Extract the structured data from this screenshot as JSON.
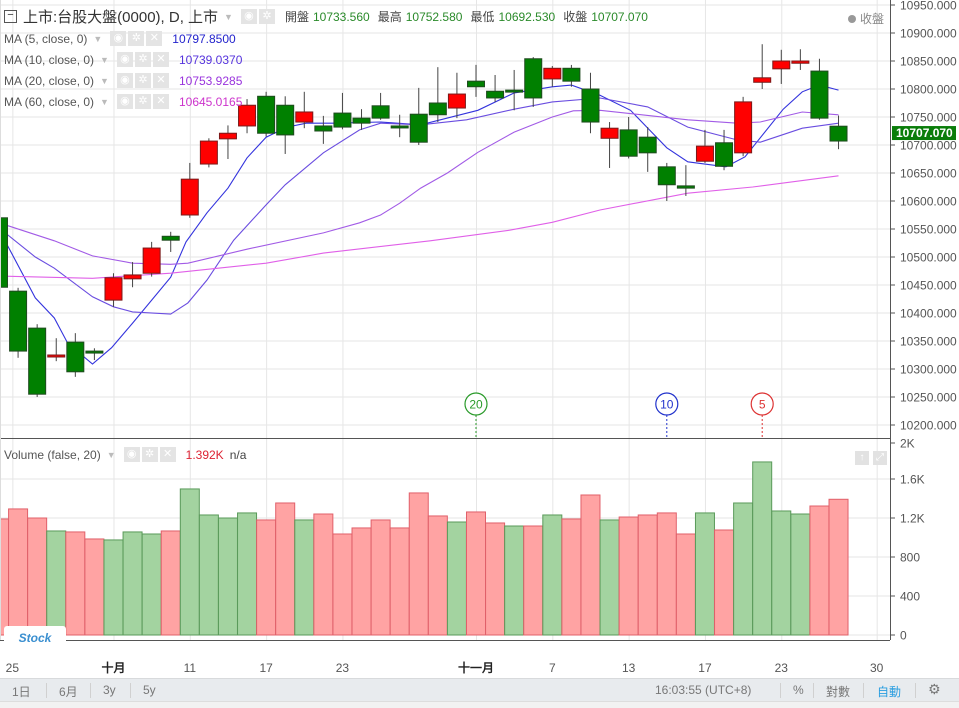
{
  "header": {
    "title": "上市:台股大盤(0000), D, 上市",
    "open_label": "開盤",
    "open": "10733.560",
    "high_label": "最高",
    "high": "10752.580",
    "low_label": "最低",
    "low": "10692.530",
    "close_label": "收盤",
    "close": "10707.070",
    "closing_indicator": "收盤"
  },
  "indicators": [
    {
      "label": "MA (5, close, 0)",
      "value": "10797.8500",
      "color": "#2222cc"
    },
    {
      "label": "MA (10, close, 0)",
      "value": "10739.0370",
      "color": "#5533dd"
    },
    {
      "label": "MA (20, close, 0)",
      "value": "10753.9285",
      "color": "#9933dd"
    },
    {
      "label": "MA (60, close, 0)",
      "value": "10645.0165",
      "color": "#cc33cc"
    }
  ],
  "volume_legend": {
    "label": "Volume (false, 20)",
    "value": "1.392K",
    "extra": "n/a"
  },
  "current_price_label": "10707.070",
  "colors": {
    "up": "#ff0000",
    "down": "#008000",
    "vol_up": "#ffa3a3",
    "vol_down": "#a3d3a0"
  },
  "chart_data": {
    "type": "candlestick",
    "price_axis": {
      "range": [
        10200,
        10950
      ],
      "step": 50,
      "labels": [
        "10950.000",
        "10900.000",
        "10850.000",
        "10800.000",
        "10750.000",
        "10700.000",
        "10650.000",
        "10600.000",
        "10550.000",
        "10500.000",
        "10450.000",
        "10400.000",
        "10350.000",
        "10300.000",
        "10250.000",
        "10200.000"
      ]
    },
    "volume_axis": {
      "range": [
        0,
        2000
      ],
      "ticks": [
        {
          "v": 0,
          "label": "0"
        },
        {
          "v": 400,
          "label": "400"
        },
        {
          "v": 800,
          "label": "800"
        },
        {
          "v": 1200,
          "label": "1.2K"
        },
        {
          "v": 1600,
          "label": "1.6K"
        },
        {
          "v": 2000,
          "label": "2K"
        }
      ]
    },
    "x_ticks": [
      {
        "i": 0.7,
        "label": "25"
      },
      {
        "i": 6,
        "label": "十月",
        "bold": true
      },
      {
        "i": 10,
        "label": "11"
      },
      {
        "i": 14,
        "label": "17"
      },
      {
        "i": 18,
        "label": "23"
      },
      {
        "i": 25,
        "label": "十一月",
        "bold": true
      },
      {
        "i": 29,
        "label": "7"
      },
      {
        "i": 33,
        "label": "13"
      },
      {
        "i": 37,
        "label": "17"
      },
      {
        "i": 41,
        "label": "23"
      },
      {
        "i": 46,
        "label": "30"
      }
    ],
    "candles": [
      [
        10570,
        10575,
        10440,
        10446
      ],
      [
        10439,
        10445,
        10320,
        10332
      ],
      [
        10373,
        10380,
        10250,
        10255
      ],
      [
        10322,
        10355,
        10314,
        10325
      ],
      [
        10348,
        10364,
        10286,
        10295
      ],
      [
        10332,
        10337,
        10316,
        10329
      ],
      [
        10423,
        10471,
        10411,
        10463
      ],
      [
        10461,
        10491,
        10446,
        10468
      ],
      [
        10471,
        10527,
        10465,
        10516
      ],
      [
        10537,
        10545,
        10509,
        10530
      ],
      [
        10575,
        10668,
        10570,
        10639
      ],
      [
        10666,
        10712,
        10660,
        10707
      ],
      [
        10711,
        10735,
        10675,
        10721
      ],
      [
        10734,
        10782,
        10721,
        10771
      ],
      [
        10787,
        10795,
        10715,
        10721
      ],
      [
        10771,
        10787,
        10684,
        10718
      ],
      [
        10741,
        10795,
        10730,
        10759
      ],
      [
        10734,
        10752,
        10702,
        10725
      ],
      [
        10757,
        10793,
        10728,
        10732
      ],
      [
        10748,
        10764,
        10727,
        10739
      ],
      [
        10770,
        10793,
        10745,
        10748
      ],
      [
        10734,
        10754,
        10714,
        10732
      ],
      [
        10755,
        10802,
        10700,
        10705
      ],
      [
        10775,
        10839,
        10741,
        10754
      ],
      [
        10766,
        10829,
        10748,
        10791
      ],
      [
        10814,
        10843,
        10786,
        10804
      ],
      [
        10796,
        10825,
        10777,
        10784
      ],
      [
        10798,
        10834,
        10762,
        10795
      ],
      [
        10854,
        10857,
        10768,
        10784
      ],
      [
        10818,
        10841,
        10804,
        10837
      ],
      [
        10837,
        10843,
        10804,
        10814
      ],
      [
        10800,
        10829,
        10721,
        10741
      ],
      [
        10712,
        10741,
        10659,
        10730
      ],
      [
        10727,
        10750,
        10676,
        10680
      ],
      [
        10714,
        10732,
        10652,
        10686
      ],
      [
        10661,
        10668,
        10600,
        10629
      ],
      [
        10627,
        10664,
        10609,
        10623
      ],
      [
        10671,
        10727,
        10668,
        10698
      ],
      [
        10704,
        10727,
        10655,
        10662
      ],
      [
        10686,
        10786,
        10680,
        10777
      ],
      [
        10812,
        10880,
        10800,
        10820
      ],
      [
        10836,
        10870,
        10809,
        10850
      ],
      [
        10846,
        10871,
        10834,
        10850
      ],
      [
        10832,
        10854,
        10745,
        10748
      ],
      [
        10733.56,
        10752.58,
        10692.53,
        10707.07
      ]
    ],
    "volume": [
      1190,
      1293,
      1200,
      1067,
      1057,
      985,
      975,
      1057,
      1036,
      1067,
      1498,
      1231,
      1200,
      1252,
      1180,
      1354,
      1180,
      1241,
      1036,
      1098,
      1180,
      1098,
      1457,
      1221,
      1159,
      1262,
      1149,
      1118,
      1118,
      1231,
      1190,
      1436,
      1180,
      1210,
      1231,
      1252,
      1036,
      1252,
      1077,
      1354,
      1775,
      1272,
      1241,
      1323,
      1392
    ],
    "volume_up": [
      1,
      1,
      1,
      0,
      1,
      1,
      0,
      0,
      0,
      1,
      0,
      0,
      0,
      0,
      1,
      1,
      0,
      1,
      1,
      1,
      1,
      1,
      1,
      1,
      0,
      1,
      1,
      0,
      1,
      0,
      1,
      1,
      0,
      1,
      1,
      1,
      1,
      0,
      1,
      0,
      0,
      0,
      0,
      1,
      1
    ],
    "ma": [
      {
        "name": "MA5",
        "color": "#3333dd",
        "points": [
          [
            0.3,
            10530
          ],
          [
            1.9,
            10427
          ],
          [
            2.9,
            10391
          ],
          [
            3.6,
            10346
          ],
          [
            4.9,
            10309
          ],
          [
            5.9,
            10338
          ],
          [
            7,
            10382
          ],
          [
            9,
            10464
          ],
          [
            9.8,
            10527
          ],
          [
            10.9,
            10579
          ],
          [
            12,
            10623
          ],
          [
            13,
            10677
          ],
          [
            14,
            10714
          ],
          [
            15.1,
            10732
          ],
          [
            16.1,
            10739
          ],
          [
            17.5,
            10739
          ],
          [
            20,
            10741
          ],
          [
            22.1,
            10736
          ],
          [
            25.1,
            10762
          ],
          [
            27,
            10793
          ],
          [
            29,
            10804
          ],
          [
            30,
            10807
          ],
          [
            31.5,
            10789
          ],
          [
            33.1,
            10762
          ],
          [
            35,
            10695
          ],
          [
            36.1,
            10670
          ],
          [
            38.1,
            10661
          ],
          [
            39.1,
            10679
          ],
          [
            41.1,
            10764
          ],
          [
            42.1,
            10795
          ],
          [
            43,
            10807
          ],
          [
            44,
            10798
          ]
        ]
      },
      {
        "name": "MA10",
        "color": "#6a4de0",
        "points": [
          [
            0,
            10552
          ],
          [
            1.9,
            10500
          ],
          [
            2.9,
            10480
          ],
          [
            4.9,
            10429
          ],
          [
            6,
            10411
          ],
          [
            7,
            10402
          ],
          [
            9,
            10398
          ],
          [
            9.9,
            10418
          ],
          [
            10.9,
            10459
          ],
          [
            12.3,
            10530
          ],
          [
            14,
            10593
          ],
          [
            15,
            10629
          ],
          [
            17,
            10686
          ],
          [
            18.9,
            10727
          ],
          [
            20,
            10739
          ],
          [
            22.1,
            10736
          ],
          [
            24.5,
            10745
          ],
          [
            27,
            10764
          ],
          [
            29,
            10777
          ],
          [
            31.5,
            10784
          ],
          [
            34,
            10768
          ],
          [
            36.1,
            10732
          ],
          [
            38.7,
            10709
          ],
          [
            39.9,
            10705
          ],
          [
            42.1,
            10730
          ],
          [
            44,
            10739
          ]
        ]
      },
      {
        "name": "MA20",
        "color": "#a25be6",
        "points": [
          [
            0,
            10561
          ],
          [
            2.9,
            10529
          ],
          [
            4.9,
            10502
          ],
          [
            7,
            10489
          ],
          [
            9,
            10487
          ],
          [
            9.9,
            10489
          ],
          [
            13,
            10514
          ],
          [
            17,
            10543
          ],
          [
            18.9,
            10561
          ],
          [
            20,
            10575
          ],
          [
            21,
            10596
          ],
          [
            22.1,
            10623
          ],
          [
            23.5,
            10650
          ],
          [
            25.1,
            10687
          ],
          [
            27,
            10723
          ],
          [
            29,
            10750
          ],
          [
            30.1,
            10761
          ],
          [
            31.5,
            10762
          ],
          [
            36.1,
            10745
          ],
          [
            38.7,
            10739
          ],
          [
            39.9,
            10741
          ],
          [
            42.1,
            10759
          ],
          [
            44,
            10754
          ]
        ]
      },
      {
        "name": "MA60",
        "color": "#e060e8",
        "points": [
          [
            0,
            10466
          ],
          [
            4.9,
            10462
          ],
          [
            9,
            10471
          ],
          [
            14,
            10489
          ],
          [
            17,
            10507
          ],
          [
            22.6,
            10529
          ],
          [
            26.8,
            10548
          ],
          [
            29,
            10562
          ],
          [
            31.5,
            10584
          ],
          [
            36.1,
            10614
          ],
          [
            39.5,
            10625
          ],
          [
            44,
            10645
          ]
        ]
      }
    ],
    "period_markers": [
      {
        "i": 25,
        "label": "20",
        "color": "#2a9a2a"
      },
      {
        "i": 35,
        "label": "10",
        "color": "#2233cc"
      },
      {
        "i": 40,
        "label": "5",
        "color": "#dd3333"
      }
    ]
  },
  "toolbar": {
    "ranges": [
      "1日",
      "6月",
      "3y",
      "5y"
    ],
    "time": "16:03:55 (UTC+8)",
    "percent": "%",
    "log": "對數",
    "auto": "自動"
  },
  "logo_text": "Stock"
}
